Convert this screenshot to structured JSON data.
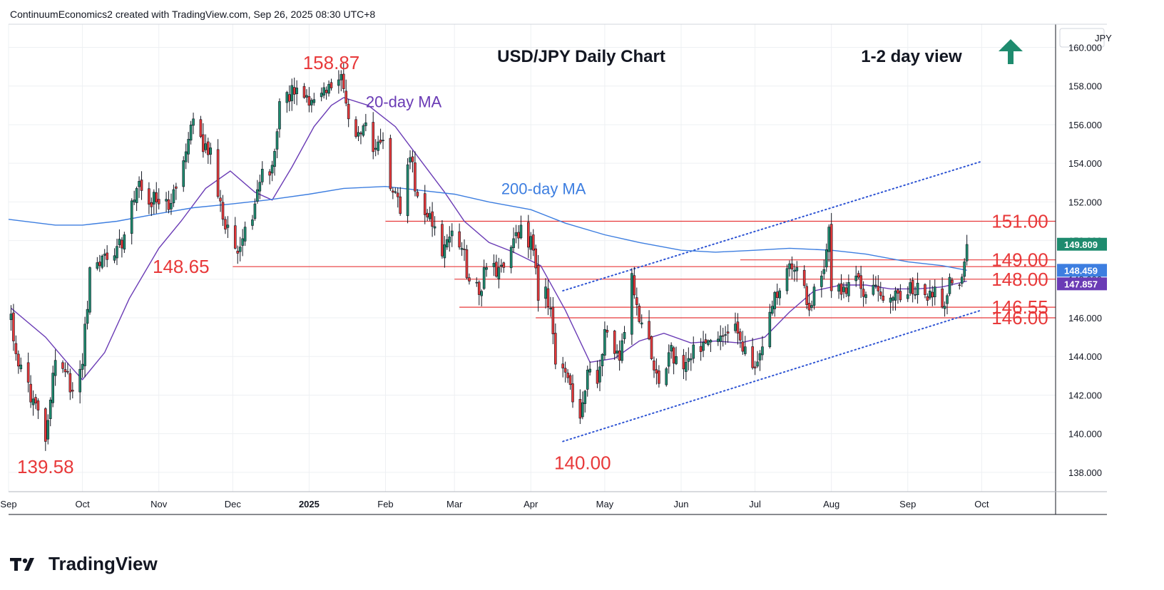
{
  "header": {
    "caption": "ContinuumEconomics2 created with TradingView.com, Sep 26, 2025 08:30 UTC+8"
  },
  "brand": {
    "name": "TradingView"
  },
  "colors": {
    "up": "#1e8b6e",
    "down": "#e8393a",
    "ma20": "#6a3bb5",
    "ma200": "#3d7ee0",
    "level": "#e8393a",
    "trend": "#2f55d4",
    "arrow": "#1e8b6e",
    "tag_last": "#1e8b6e",
    "tag_ma200": "#3d7ee0",
    "tag_ma20": "#6a3bb5"
  },
  "chart_data": {
    "type": "candlestick",
    "title": "USD/JPY Daily Chart",
    "view_label": "1-2 day view",
    "view_direction": "up",
    "currency": "JPY",
    "ylim": [
      137,
      161.2
    ],
    "xlim": [
      "2024-09-01",
      "2025-10-31"
    ],
    "y_ticks": [
      138,
      140,
      142,
      144,
      146,
      148,
      150,
      152,
      154,
      156,
      158,
      160
    ],
    "y_tick_labels": [
      "138.000",
      "140.000",
      "142.000",
      "144.000",
      "146.000",
      "148.000",
      "150.000",
      "152.000",
      "154.000",
      "156.000",
      "158.000",
      "160.000"
    ],
    "x_ticks": [
      {
        "date": "2024-09-01",
        "label": "Sep",
        "bold": false
      },
      {
        "date": "2024-10-01",
        "label": "Oct",
        "bold": false
      },
      {
        "date": "2024-11-01",
        "label": "Nov",
        "bold": false
      },
      {
        "date": "2024-12-01",
        "label": "Dec",
        "bold": false
      },
      {
        "date": "2025-01-01",
        "label": "2025",
        "bold": true
      },
      {
        "date": "2025-02-01",
        "label": "Feb",
        "bold": false
      },
      {
        "date": "2025-03-01",
        "label": "Mar",
        "bold": false
      },
      {
        "date": "2025-04-01",
        "label": "Apr",
        "bold": false
      },
      {
        "date": "2025-05-01",
        "label": "May",
        "bold": false
      },
      {
        "date": "2025-06-01",
        "label": "Jun",
        "bold": false
      },
      {
        "date": "2025-07-01",
        "label": "Jul",
        "bold": false
      },
      {
        "date": "2025-08-01",
        "label": "Aug",
        "bold": false
      },
      {
        "date": "2025-09-01",
        "label": "Sep",
        "bold": false
      },
      {
        "date": "2025-10-01",
        "label": "Oct",
        "bold": false
      }
    ],
    "price_anchors": [
      [
        "2024-09-02",
        146.2
      ],
      [
        "2024-09-05",
        143.5
      ],
      [
        "2024-09-11",
        141.8
      ],
      [
        "2024-09-16",
        139.6
      ],
      [
        "2024-09-20",
        143.8
      ],
      [
        "2024-09-24",
        143.2
      ],
      [
        "2024-09-27",
        142.2
      ],
      [
        "2024-10-01",
        143.6
      ],
      [
        "2024-10-04",
        148.6
      ],
      [
        "2024-10-10",
        149.3
      ],
      [
        "2024-10-15",
        149.7
      ],
      [
        "2024-10-18",
        150.3
      ],
      [
        "2024-10-23",
        152.7
      ],
      [
        "2024-10-31",
        152.0
      ],
      [
        "2024-11-05",
        151.6
      ],
      [
        "2024-11-08",
        152.7
      ],
      [
        "2024-11-12",
        154.6
      ],
      [
        "2024-11-15",
        156.3
      ],
      [
        "2024-11-19",
        154.6
      ],
      [
        "2024-11-22",
        154.8
      ],
      [
        "2024-11-27",
        151.1
      ],
      [
        "2024-12-02",
        149.6
      ],
      [
        "2024-12-05",
        150.1
      ],
      [
        "2024-12-10",
        151.9
      ],
      [
        "2024-12-13",
        153.7
      ],
      [
        "2024-12-17",
        153.9
      ],
      [
        "2024-12-20",
        157.2
      ],
      [
        "2024-12-27",
        157.9
      ],
      [
        "2025-01-03",
        157.3
      ],
      [
        "2025-01-10",
        157.9
      ],
      [
        "2025-01-14",
        158.6
      ],
      [
        "2025-01-17",
        156.3
      ],
      [
        "2025-01-21",
        155.6
      ],
      [
        "2025-01-24",
        156.1
      ],
      [
        "2025-01-27",
        154.6
      ],
      [
        "2025-01-31",
        155.2
      ],
      [
        "2025-02-04",
        152.5
      ],
      [
        "2025-02-07",
        151.4
      ],
      [
        "2025-02-11",
        154.3
      ],
      [
        "2025-02-14",
        152.3
      ],
      [
        "2025-02-19",
        151.4
      ],
      [
        "2025-02-24",
        149.2
      ],
      [
        "2025-02-28",
        150.5
      ],
      [
        "2025-03-04",
        149.6
      ],
      [
        "2025-03-07",
        147.9
      ],
      [
        "2025-03-11",
        147.2
      ],
      [
        "2025-03-14",
        148.6
      ],
      [
        "2025-03-19",
        148.6
      ],
      [
        "2025-03-25",
        150.1
      ],
      [
        "2025-03-28",
        150.8
      ],
      [
        "2025-04-02",
        149.5
      ],
      [
        "2025-04-04",
        146.9
      ],
      [
        "2025-04-07",
        147.6
      ],
      [
        "2025-04-09",
        146.5
      ],
      [
        "2025-04-11",
        143.6
      ],
      [
        "2025-04-16",
        142.9
      ],
      [
        "2025-04-21",
        140.8
      ],
      [
        "2025-04-24",
        143.3
      ],
      [
        "2025-04-28",
        142.6
      ],
      [
        "2025-05-01",
        145.4
      ],
      [
        "2025-05-07",
        143.8
      ],
      [
        "2025-05-12",
        148.3
      ],
      [
        "2025-05-15",
        145.8
      ],
      [
        "2025-05-19",
        144.9
      ],
      [
        "2025-05-23",
        142.6
      ],
      [
        "2025-05-27",
        144.2
      ],
      [
        "2025-05-30",
        144.0
      ],
      [
        "2025-06-03",
        143.7
      ],
      [
        "2025-06-06",
        144.6
      ],
      [
        "2025-06-11",
        144.7
      ],
      [
        "2025-06-16",
        144.9
      ],
      [
        "2025-06-20",
        145.2
      ],
      [
        "2025-06-24",
        145.2
      ],
      [
        "2025-06-27",
        144.5
      ],
      [
        "2025-07-01",
        143.4
      ],
      [
        "2025-07-04",
        144.5
      ],
      [
        "2025-07-08",
        146.6
      ],
      [
        "2025-07-11",
        147.4
      ],
      [
        "2025-07-15",
        148.8
      ],
      [
        "2025-07-18",
        148.6
      ],
      [
        "2025-07-23",
        146.4
      ],
      [
        "2025-07-25",
        147.6
      ],
      [
        "2025-07-29",
        148.5
      ],
      [
        "2025-07-31",
        150.7
      ],
      [
        "2025-08-01",
        147.4
      ],
      [
        "2025-08-06",
        147.6
      ],
      [
        "2025-08-12",
        148.1
      ],
      [
        "2025-08-15",
        147.2
      ],
      [
        "2025-08-19",
        147.7
      ],
      [
        "2025-08-22",
        146.9
      ],
      [
        "2025-08-27",
        147.4
      ],
      [
        "2025-09-01",
        147.2
      ],
      [
        "2025-09-05",
        147.8
      ],
      [
        "2025-09-09",
        146.9
      ],
      [
        "2025-09-12",
        147.6
      ],
      [
        "2025-09-16",
        146.6
      ],
      [
        "2025-09-18",
        148.1
      ],
      [
        "2025-09-22",
        147.7
      ],
      [
        "2025-09-24",
        148.9
      ],
      [
        "2025-09-25",
        149.8
      ]
    ],
    "moving_averages": [
      {
        "name": "20-day MA",
        "points": [
          [
            "2024-09-02",
            146.5
          ],
          [
            "2024-09-16",
            145.0
          ],
          [
            "2024-09-26",
            143.5
          ],
          [
            "2024-10-01",
            142.8
          ],
          [
            "2024-10-10",
            144.2
          ],
          [
            "2024-10-20",
            147.0
          ],
          [
            "2024-11-01",
            149.6
          ],
          [
            "2024-11-10",
            151.0
          ],
          [
            "2024-11-20",
            152.7
          ],
          [
            "2024-11-30",
            153.6
          ],
          [
            "2024-12-10",
            152.5
          ],
          [
            "2024-12-17",
            152.1
          ],
          [
            "2024-12-25",
            153.8
          ],
          [
            "2025-01-03",
            155.9
          ],
          [
            "2025-01-10",
            157.0
          ],
          [
            "2025-01-15",
            157.4
          ],
          [
            "2025-01-25",
            157.0
          ],
          [
            "2025-02-05",
            155.9
          ],
          [
            "2025-02-15",
            154.2
          ],
          [
            "2025-02-25",
            152.5
          ],
          [
            "2025-03-05",
            151.0
          ],
          [
            "2025-03-15",
            149.9
          ],
          [
            "2025-03-25",
            149.4
          ],
          [
            "2025-04-05",
            148.7
          ],
          [
            "2025-04-15",
            146.4
          ],
          [
            "2025-04-25",
            143.7
          ],
          [
            "2025-05-05",
            143.9
          ],
          [
            "2025-05-15",
            144.8
          ],
          [
            "2025-05-25",
            145.2
          ],
          [
            "2025-06-05",
            144.7
          ],
          [
            "2025-06-15",
            144.8
          ],
          [
            "2025-06-25",
            144.7
          ],
          [
            "2025-07-05",
            145.0
          ],
          [
            "2025-07-15",
            146.3
          ],
          [
            "2025-07-25",
            147.4
          ],
          [
            "2025-08-05",
            147.7
          ],
          [
            "2025-08-15",
            147.7
          ],
          [
            "2025-08-25",
            147.5
          ],
          [
            "2025-09-05",
            147.5
          ],
          [
            "2025-09-15",
            147.6
          ],
          [
            "2025-09-25",
            147.9
          ]
        ]
      },
      {
        "name": "200-day MA",
        "points": [
          [
            "2024-09-01",
            151.1
          ],
          [
            "2024-09-20",
            150.8
          ],
          [
            "2024-10-01",
            150.8
          ],
          [
            "2024-10-15",
            151.0
          ],
          [
            "2024-11-01",
            151.4
          ],
          [
            "2024-11-15",
            151.7
          ],
          [
            "2024-12-01",
            151.9
          ],
          [
            "2024-12-15",
            152.1
          ],
          [
            "2025-01-01",
            152.4
          ],
          [
            "2025-01-15",
            152.7
          ],
          [
            "2025-02-01",
            152.8
          ],
          [
            "2025-02-15",
            152.6
          ],
          [
            "2025-03-01",
            152.4
          ],
          [
            "2025-03-15",
            152.0
          ],
          [
            "2025-04-01",
            151.6
          ],
          [
            "2025-04-15",
            150.9
          ],
          [
            "2025-05-01",
            150.3
          ],
          [
            "2025-05-15",
            149.9
          ],
          [
            "2025-06-01",
            149.5
          ],
          [
            "2025-06-15",
            149.4
          ],
          [
            "2025-07-01",
            149.5
          ],
          [
            "2025-07-15",
            149.6
          ],
          [
            "2025-08-01",
            149.5
          ],
          [
            "2025-08-15",
            149.3
          ],
          [
            "2025-09-01",
            148.9
          ],
          [
            "2025-09-15",
            148.7
          ],
          [
            "2025-09-25",
            148.46
          ]
        ]
      }
    ],
    "ma_labels": [
      {
        "text": "20-day MA",
        "date": "2025-01-24",
        "price": 156.9,
        "series": "ma20"
      },
      {
        "text": "200-day MA",
        "date": "2025-03-20",
        "price": 152.4,
        "series": "ma200"
      }
    ],
    "levels": [
      {
        "price": 151.0,
        "label": "151.00",
        "from": "2025-02-01"
      },
      {
        "price": 149.0,
        "label": "149.00",
        "from": "2025-06-25"
      },
      {
        "price": 148.65,
        "label": "148.65",
        "from": "2024-12-01"
      },
      {
        "price": 148.0,
        "label": "148.00",
        "from": "2025-03-01"
      },
      {
        "price": 146.55,
        "label": "146.55",
        "from": "2025-03-03"
      },
      {
        "price": 146.0,
        "label": "146.00",
        "from": "2025-04-03"
      }
    ],
    "level_label_positions": [
      {
        "label": "151.00",
        "date": "2025-10-05",
        "price": 151.0
      },
      {
        "label": "149.00",
        "date": "2025-10-05",
        "price": 149.0
      },
      {
        "label": "148.00",
        "date": "2025-10-05",
        "price": 148.0
      },
      {
        "label": "146.55",
        "date": "2025-10-05",
        "price": 146.55
      },
      {
        "label": "146.00",
        "date": "2025-10-05",
        "price": 146.0
      }
    ],
    "peak_labels": [
      {
        "label": "158.87",
        "date": "2025-01-10",
        "price": 159.2
      },
      {
        "label": "148.65",
        "date": "2024-11-10",
        "price": 148.65
      },
      {
        "label": "139.58",
        "date": "2024-09-16",
        "price": 138.3
      },
      {
        "label": "140.00",
        "date": "2025-04-22",
        "price": 138.5
      }
    ],
    "trendlines": [
      {
        "from": [
          "2025-04-14",
          147.4
        ],
        "to": [
          "2025-10-01",
          154.1
        ]
      },
      {
        "from": [
          "2025-04-14",
          139.6
        ],
        "to": [
          "2025-10-01",
          146.4
        ]
      }
    ],
    "price_tags": [
      {
        "label": "149.809",
        "price": 149.81,
        "series": "last"
      },
      {
        "label": "148.459",
        "price": 148.46,
        "series": "ma200"
      },
      {
        "label": "147.857",
        "price": 147.86,
        "series": "ma20"
      }
    ]
  }
}
